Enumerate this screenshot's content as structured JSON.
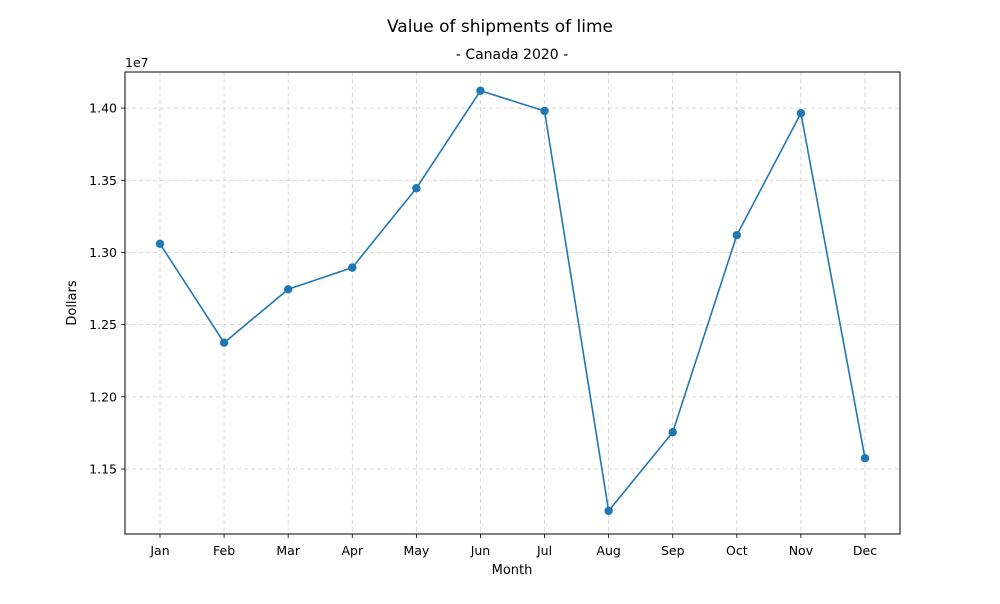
{
  "chart_data": {
    "type": "line",
    "title": "Value of shipments of lime",
    "subtitle": "- Canada 2020 -",
    "xlabel": "Month",
    "ylabel": "Dollars",
    "y_offset_label": "1e7",
    "y_scale": 10000000,
    "categories": [
      "Jan",
      "Feb",
      "Mar",
      "Apr",
      "May",
      "Jun",
      "Jul",
      "Aug",
      "Sep",
      "Oct",
      "Nov",
      "Dec"
    ],
    "series": [
      {
        "values": [
          13060000,
          12375000,
          12745000,
          12895000,
          13445000,
          14120000,
          13980000,
          11210000,
          11755000,
          13120000,
          13965000,
          11575000
        ],
        "color": "#1f77b4",
        "marker": "circle"
      }
    ],
    "ylim": [
      11050000,
      14250000
    ],
    "yticks": [
      11500000,
      12000000,
      12500000,
      13000000,
      13500000,
      14000000
    ],
    "ytick_labels": [
      "1.15",
      "1.20",
      "1.25",
      "1.30",
      "1.35",
      "1.40"
    ],
    "grid": true,
    "grid_style": "dashed",
    "grid_color": "#cccccc",
    "legend": false
  }
}
